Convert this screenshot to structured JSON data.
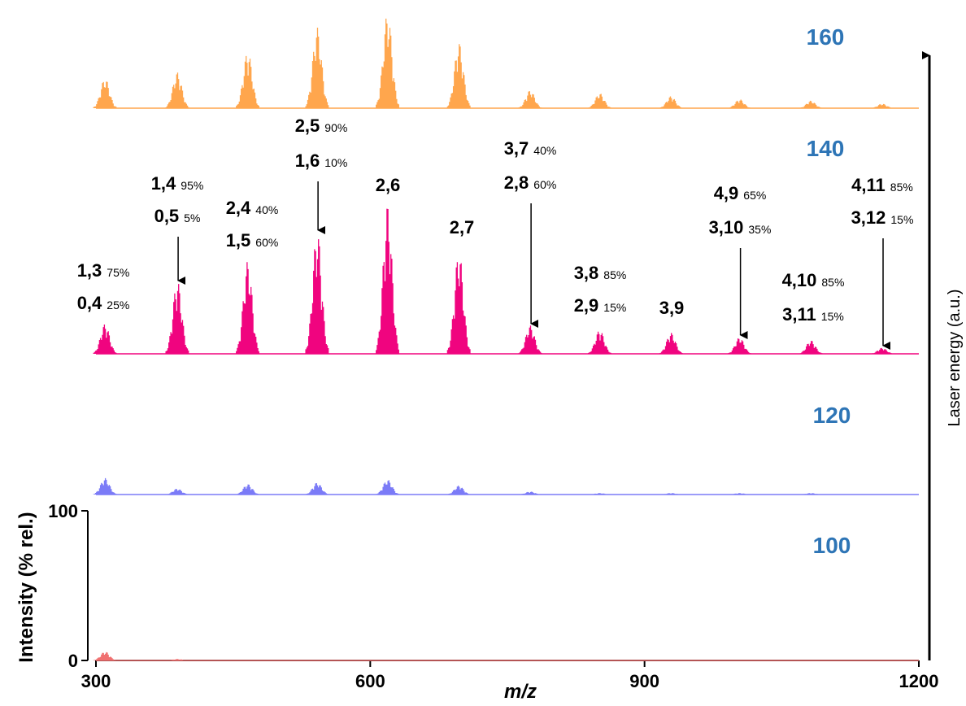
{
  "chart_data": {
    "type": "spectra",
    "x_label": "m/z",
    "y_label": "Intensity (% rel.)",
    "y2_label": "Laser energy (a.u.)",
    "xlim": [
      300,
      1200
    ],
    "xticks": [
      300,
      600,
      900,
      1200
    ],
    "ylim": [
      0,
      100
    ],
    "yticks": [
      0,
      100
    ],
    "x": [
      310,
      389,
      466,
      542,
      619,
      697,
      775,
      851,
      929,
      1004,
      1082,
      1160
    ],
    "series": [
      {
        "name": "160",
        "color": "#ffa64d",
        "values": [
          20,
          24,
          38,
          54,
          64,
          44,
          12,
          10,
          8,
          6,
          5,
          3
        ]
      },
      {
        "name": "140",
        "color": "#f0047f",
        "values": [
          20,
          49,
          62,
          83,
          100,
          69,
          19,
          16,
          14,
          11,
          9,
          4
        ]
      },
      {
        "name": "120",
        "color": "#7b7bf7",
        "values": [
          11,
          4,
          7,
          8,
          10,
          6,
          2,
          1,
          1,
          1,
          1,
          0
        ]
      },
      {
        "name": "100",
        "color": "#f07070",
        "values": [
          6,
          1,
          0,
          0,
          0,
          0,
          0,
          0,
          0,
          0,
          0,
          0
        ]
      }
    ],
    "peak_labels": [
      {
        "lines": [
          {
            "name": "1,3",
            "share": "75%"
          },
          {
            "name": "0,4",
            "share": "25%"
          }
        ]
      },
      {
        "lines": [
          {
            "name": "1,4",
            "share": "95%"
          },
          {
            "name": "0,5",
            "share": "5%"
          }
        ],
        "arrow": true
      },
      {
        "lines": [
          {
            "name": "2,4",
            "share": "40%"
          },
          {
            "name": "1,5",
            "share": "60%"
          }
        ]
      },
      {
        "lines": [
          {
            "name": "2,5",
            "share": "90%"
          },
          {
            "name": "1,6",
            "share": "10%"
          }
        ],
        "arrow": true
      },
      {
        "lines": [
          {
            "name": "2,6"
          }
        ]
      },
      {
        "lines": [
          {
            "name": "2,7"
          }
        ]
      },
      {
        "lines": [
          {
            "name": "3,7",
            "share": "40%"
          },
          {
            "name": "2,8",
            "share": "60%"
          }
        ],
        "arrow": true
      },
      {
        "lines": [
          {
            "name": "3,8",
            "share": "85%"
          },
          {
            "name": "2,9",
            "share": "15%"
          }
        ]
      },
      {
        "lines": [
          {
            "name": "3,9"
          }
        ]
      },
      {
        "lines": [
          {
            "name": "4,9",
            "share": "65%"
          },
          {
            "name": "3,10",
            "share": "35%"
          }
        ],
        "arrow": true
      },
      {
        "lines": [
          {
            "name": "4,10",
            "share": "85%"
          },
          {
            "name": "3,11",
            "share": "15%"
          }
        ]
      },
      {
        "lines": [
          {
            "name": "4,11",
            "share": "85%"
          },
          {
            "name": "3,12",
            "share": "15%"
          }
        ],
        "arrow": true
      }
    ]
  }
}
